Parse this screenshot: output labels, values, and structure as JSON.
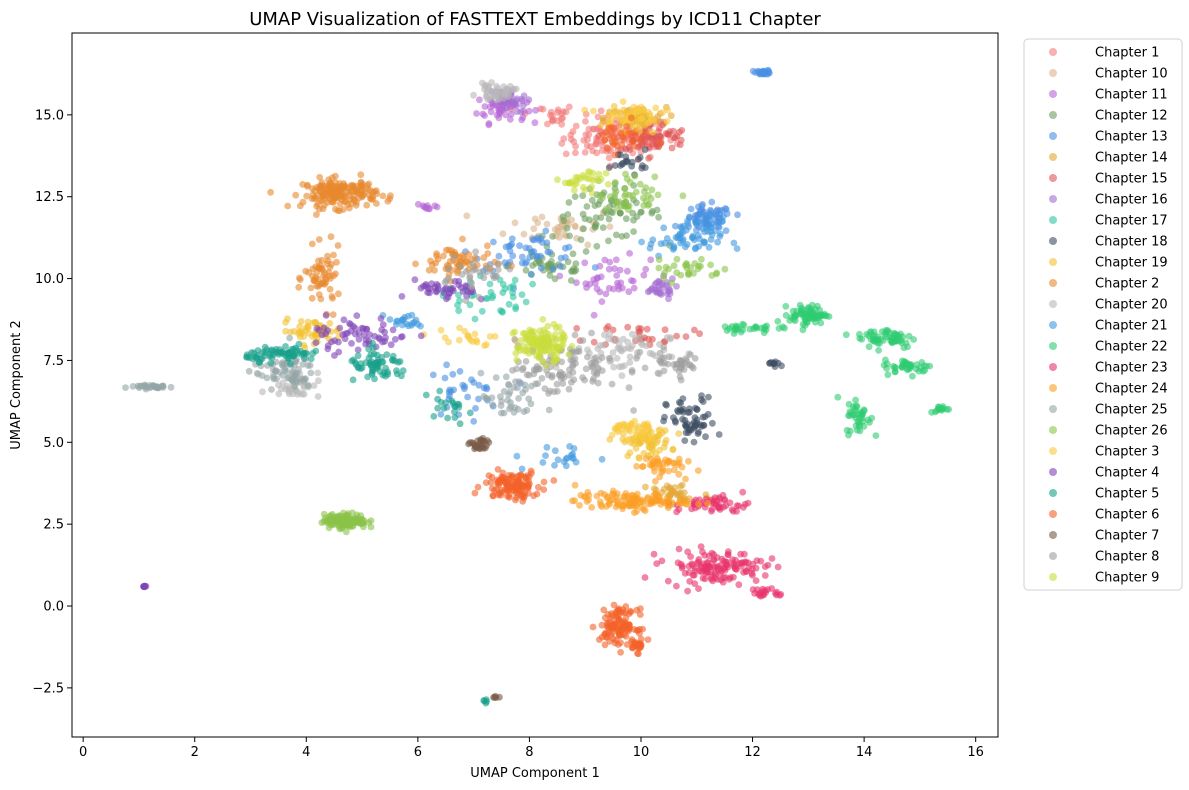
{
  "chart_data": {
    "type": "scatter",
    "title": "UMAP Visualization of FASTTEXT Embeddings by ICD11 Chapter",
    "xlabel": "UMAP Component 1",
    "ylabel": "UMAP Component 2",
    "xlim": [
      -0.2,
      16.4
    ],
    "ylim": [
      -4.0,
      17.5
    ],
    "xticks": [
      0,
      2,
      4,
      6,
      8,
      10,
      12,
      14,
      16
    ],
    "yticks": [
      -2.5,
      0.0,
      2.5,
      5.0,
      7.5,
      10.0,
      12.5,
      15.0
    ],
    "ytick_labels": [
      "−2.5",
      "0.0",
      "2.5",
      "5.0",
      "7.5",
      "10.0",
      "12.5",
      "15.0"
    ],
    "grid": false,
    "legend_position": "outside-right",
    "series": [
      {
        "name": "Chapter 1",
        "color": "#f47b7b",
        "clusters": [
          [
            9.6,
            14.3,
            0.9,
            0.6,
            120
          ],
          [
            8.3,
            15.0,
            0.5,
            0.3,
            20
          ]
        ]
      },
      {
        "name": "Chapter 10",
        "color": "#d8b48c",
        "clusters": [
          [
            8.6,
            11.6,
            0.9,
            0.5,
            40
          ]
        ]
      },
      {
        "name": "Chapter 11",
        "color": "#b565d6",
        "clusters": [
          [
            7.5,
            15.2,
            0.4,
            0.4,
            50
          ],
          [
            9.5,
            10.0,
            0.6,
            0.6,
            40
          ],
          [
            6.2,
            12.2,
            0.2,
            0.1,
            10
          ]
        ]
      },
      {
        "name": "Chapter 12",
        "color": "#6d9e5e",
        "clusters": [
          [
            9.4,
            12.0,
            0.9,
            0.7,
            70
          ],
          [
            8.4,
            10.4,
            0.7,
            0.5,
            40
          ]
        ]
      },
      {
        "name": "Chapter 13",
        "color": "#4a90e2",
        "clusters": [
          [
            11.2,
            11.8,
            0.4,
            0.4,
            70
          ],
          [
            12.2,
            16.3,
            0.12,
            0.06,
            25
          ],
          [
            8.0,
            10.8,
            0.9,
            0.5,
            50
          ],
          [
            6.8,
            6.5,
            0.6,
            0.7,
            30
          ]
        ]
      },
      {
        "name": "Chapter 14",
        "color": "#e3a634",
        "clusters": [
          [
            9.9,
            14.9,
            0.5,
            0.3,
            40
          ],
          [
            10.6,
            3.4,
            0.6,
            0.4,
            40
          ]
        ]
      },
      {
        "name": "Chapter 15",
        "color": "#e05555",
        "clusters": [
          [
            10.2,
            14.3,
            0.6,
            0.4,
            60
          ],
          [
            10.0,
            8.3,
            0.8,
            0.3,
            30
          ]
        ]
      },
      {
        "name": "Chapter 16",
        "color": "#a46ed0",
        "clusters": [
          [
            10.3,
            9.7,
            0.3,
            0.3,
            30
          ],
          [
            7.6,
            15.4,
            0.3,
            0.3,
            30
          ]
        ]
      },
      {
        "name": "Chapter 17",
        "color": "#2ec4a2",
        "clusters": [
          [
            7.2,
            9.5,
            0.7,
            0.6,
            40
          ]
        ]
      },
      {
        "name": "Chapter 18",
        "color": "#3d4f63",
        "clusters": [
          [
            10.9,
            5.6,
            0.4,
            0.7,
            60
          ],
          [
            12.4,
            7.4,
            0.2,
            0.1,
            10
          ],
          [
            9.8,
            13.6,
            0.3,
            0.3,
            20
          ]
        ]
      },
      {
        "name": "Chapter 19",
        "color": "#f2c230",
        "clusters": [
          [
            10.1,
            5.0,
            0.4,
            0.4,
            60
          ],
          [
            4.1,
            8.4,
            0.5,
            0.3,
            50
          ],
          [
            9.9,
            14.8,
            0.5,
            0.4,
            30
          ]
        ]
      },
      {
        "name": "Chapter 2",
        "color": "#e8892f",
        "clusters": [
          [
            4.6,
            12.6,
            0.6,
            0.4,
            180
          ],
          [
            4.3,
            10.0,
            0.3,
            0.8,
            60
          ],
          [
            6.7,
            10.5,
            0.6,
            0.5,
            60
          ]
        ]
      },
      {
        "name": "Chapter 20",
        "color": "#b8b8b8",
        "clusters": [
          [
            7.4,
            15.7,
            0.3,
            0.2,
            40
          ],
          [
            3.8,
            6.8,
            0.4,
            0.4,
            40
          ],
          [
            9.6,
            7.8,
            0.8,
            0.6,
            60
          ]
        ]
      },
      {
        "name": "Chapter 21",
        "color": "#3f9ae0",
        "clusters": [
          [
            10.8,
            11.2,
            0.6,
            0.5,
            60
          ],
          [
            5.8,
            8.7,
            0.3,
            0.2,
            20
          ],
          [
            8.5,
            4.5,
            0.7,
            0.4,
            20
          ]
        ]
      },
      {
        "name": "Chapter 22",
        "color": "#2ecc71",
        "clusters": [
          [
            13.0,
            8.9,
            0.3,
            0.25,
            70
          ],
          [
            14.4,
            8.2,
            0.5,
            0.3,
            60
          ],
          [
            14.8,
            7.3,
            0.4,
            0.2,
            40
          ],
          [
            13.9,
            5.8,
            0.2,
            0.5,
            40
          ],
          [
            15.4,
            6.0,
            0.2,
            0.1,
            15
          ],
          [
            12.0,
            8.5,
            0.6,
            0.15,
            30
          ]
        ]
      },
      {
        "name": "Chapter 23",
        "color": "#e8336c",
        "clusters": [
          [
            11.3,
            1.2,
            0.8,
            0.45,
            130
          ],
          [
            12.3,
            0.4,
            0.3,
            0.15,
            20
          ],
          [
            11.3,
            3.1,
            0.6,
            0.25,
            50
          ]
        ]
      },
      {
        "name": "Chapter 24",
        "color": "#fb9f24",
        "clusters": [
          [
            9.8,
            3.2,
            0.9,
            0.25,
            110
          ],
          [
            10.3,
            4.3,
            0.4,
            0.3,
            40
          ]
        ]
      },
      {
        "name": "Chapter 25",
        "color": "#95a5a6",
        "clusters": [
          [
            1.2,
            6.7,
            0.4,
            0.06,
            30
          ],
          [
            3.6,
            7.2,
            0.5,
            0.5,
            60
          ],
          [
            7.7,
            6.3,
            0.5,
            0.7,
            40
          ]
        ]
      },
      {
        "name": "Chapter 26",
        "color": "#8bc34a",
        "clusters": [
          [
            4.7,
            2.6,
            0.35,
            0.2,
            130
          ],
          [
            9.9,
            12.6,
            0.6,
            0.5,
            40
          ],
          [
            10.8,
            10.3,
            0.6,
            0.4,
            30
          ]
        ]
      },
      {
        "name": "Chapter 3",
        "color": "#f9c940",
        "clusters": [
          [
            9.8,
            15.0,
            0.5,
            0.3,
            40
          ],
          [
            9.8,
            5.4,
            0.4,
            0.3,
            40
          ],
          [
            6.9,
            8.2,
            0.6,
            0.3,
            20
          ]
        ]
      },
      {
        "name": "Chapter 4",
        "color": "#7e44b8",
        "clusters": [
          [
            5.0,
            8.3,
            0.8,
            0.5,
            60
          ],
          [
            6.5,
            9.6,
            0.5,
            0.3,
            40
          ],
          [
            1.1,
            0.6,
            0.02,
            0.02,
            8
          ]
        ]
      },
      {
        "name": "Chapter 5",
        "color": "#17a08a",
        "clusters": [
          [
            3.6,
            7.7,
            0.6,
            0.2,
            70
          ],
          [
            5.3,
            7.3,
            0.5,
            0.4,
            60
          ],
          [
            6.5,
            6.0,
            0.5,
            0.4,
            20
          ],
          [
            7.2,
            -2.9,
            0.05,
            0.08,
            5
          ]
        ]
      },
      {
        "name": "Chapter 6",
        "color": "#f4622a",
        "clusters": [
          [
            7.7,
            3.7,
            0.45,
            0.4,
            120
          ],
          [
            9.6,
            -0.6,
            0.3,
            0.45,
            110
          ],
          [
            9.9,
            -1.2,
            0.2,
            0.2,
            25
          ],
          [
            9.6,
            14.3,
            0.5,
            0.4,
            30
          ]
        ]
      },
      {
        "name": "Chapter 7",
        "color": "#7a5a48",
        "clusters": [
          [
            7.1,
            4.9,
            0.15,
            0.2,
            30
          ],
          [
            7.4,
            -2.8,
            0.05,
            0.06,
            5
          ]
        ]
      },
      {
        "name": "Chapter 8",
        "color": "#9e9e9e",
        "clusters": [
          [
            8.6,
            7.3,
            0.9,
            0.8,
            100
          ],
          [
            10.6,
            7.4,
            0.5,
            0.4,
            40
          ],
          [
            7.0,
            10.1,
            0.6,
            0.5,
            30
          ]
        ]
      },
      {
        "name": "Chapter 9",
        "color": "#c9dd3c",
        "clusters": [
          [
            8.2,
            8.0,
            0.4,
            0.5,
            120
          ],
          [
            9.0,
            13.0,
            0.4,
            0.3,
            30
          ]
        ]
      }
    ]
  }
}
